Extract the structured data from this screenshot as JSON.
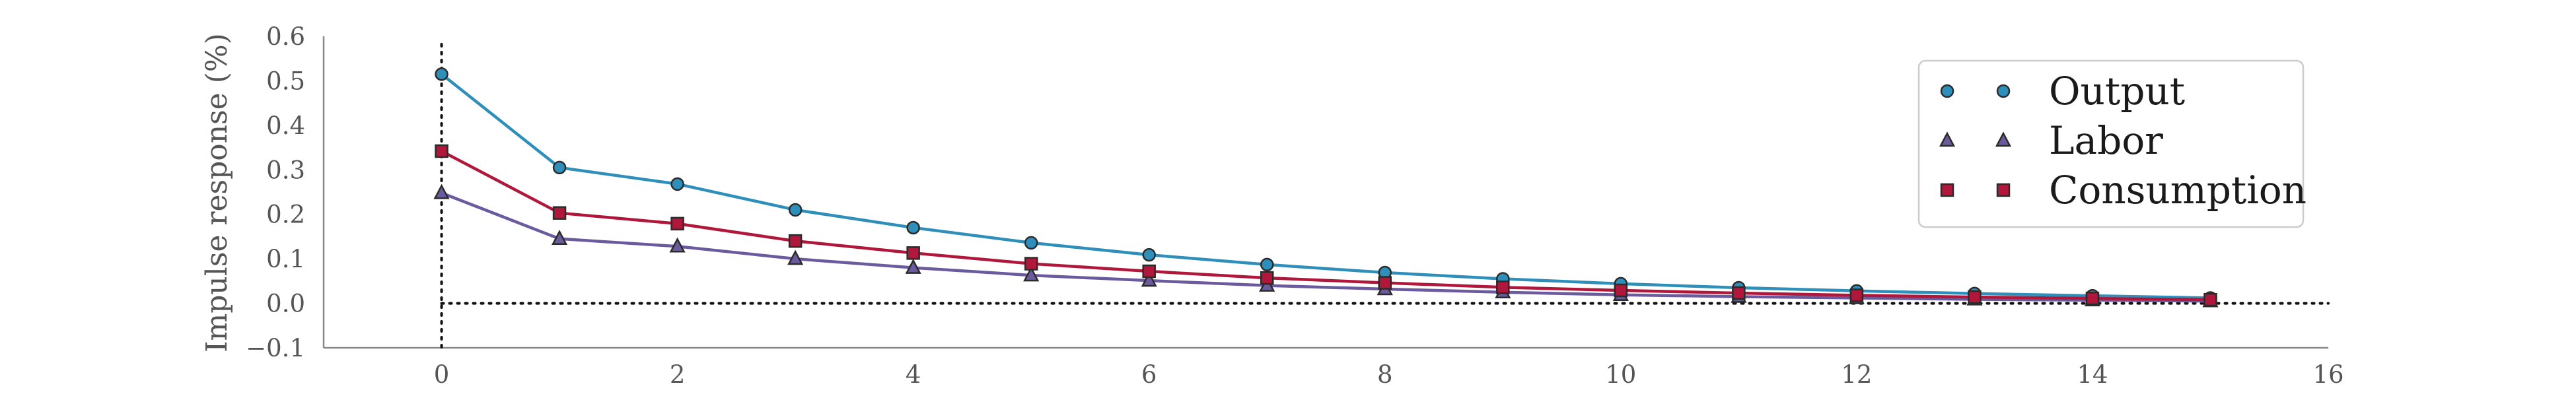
{
  "chart_data": {
    "type": "line",
    "title": "",
    "xlabel": "",
    "ylabel": "Impulse response (%)",
    "xlim": [
      -1,
      16
    ],
    "ylim": [
      -0.1,
      0.6
    ],
    "x_ticks": [
      0,
      2,
      4,
      6,
      8,
      10,
      12,
      14,
      16
    ],
    "y_ticks": [
      -0.1,
      0.0,
      0.1,
      0.2,
      0.3,
      0.4,
      0.5,
      0.6
    ],
    "x_tick_labels": [
      "0",
      "2",
      "4",
      "6",
      "8",
      "10",
      "12",
      "14",
      "16"
    ],
    "y_tick_labels": [
      "−0.1",
      "0.0",
      "0.1",
      "0.2",
      "0.3",
      "0.4",
      "0.5",
      "0.6"
    ],
    "grid": false,
    "reference_lines": {
      "horizontal_y": 0.0,
      "vertical_x": 0,
      "style": "dotted"
    },
    "legend_position": "top-right",
    "x": [
      0,
      1,
      2,
      3,
      4,
      5,
      6,
      7,
      8,
      9,
      10,
      11,
      12,
      13,
      14,
      15
    ],
    "series": [
      {
        "name": "Output",
        "marker": "circle",
        "color": "#2e8fba",
        "values": [
          0.515,
          0.305,
          0.268,
          0.21,
          0.17,
          0.136,
          0.109,
          0.087,
          0.069,
          0.055,
          0.044,
          0.035,
          0.028,
          0.022,
          0.017,
          0.012
        ]
      },
      {
        "name": "Labor",
        "marker": "triangle",
        "color": "#6b5b9e",
        "values": [
          0.248,
          0.145,
          0.128,
          0.1,
          0.08,
          0.063,
          0.051,
          0.04,
          0.032,
          0.025,
          0.019,
          0.015,
          0.012,
          0.009,
          0.007,
          0.005
        ]
      },
      {
        "name": "Consumption",
        "marker": "square",
        "color": "#b0173a",
        "values": [
          0.342,
          0.203,
          0.179,
          0.14,
          0.113,
          0.089,
          0.072,
          0.057,
          0.046,
          0.036,
          0.029,
          0.023,
          0.018,
          0.014,
          0.011,
          0.008
        ]
      }
    ]
  }
}
